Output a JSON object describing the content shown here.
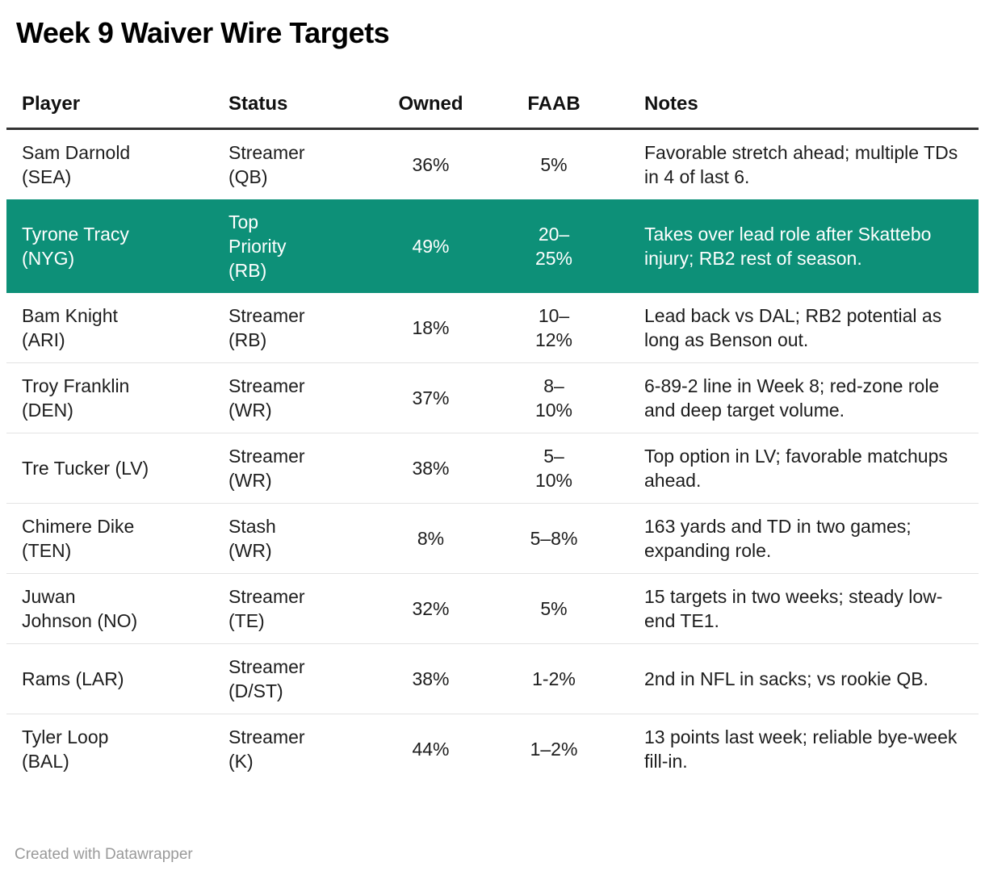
{
  "title": "Week 9 Waiver Wire Targets",
  "footer": {
    "attribution": "Created with Datawrapper"
  },
  "colors": {
    "highlight_row_bg": "#0d9078",
    "highlight_row_text": "#ffffff",
    "header_rule": "#333333",
    "row_divider": "#e3e3e3",
    "body_text": "#1d1d1d",
    "footer_text": "#9a9a9a",
    "background": "#ffffff"
  },
  "chart_data": {
    "type": "table",
    "title": "Week 9 Waiver Wire Targets",
    "columns": [
      "Player",
      "Status",
      "Owned",
      "FAAB",
      "Notes"
    ],
    "rows": [
      [
        "Sam Darnold (SEA)",
        "Streamer (QB)",
        "36%",
        "5%",
        "Favorable stretch ahead; multiple TDs in 4 of last 6."
      ],
      [
        "Tyrone Tracy (NYG)",
        "Top Priority (RB)",
        "49%",
        "20–25%",
        "Takes over lead role after Skattebo injury; RB2 rest of season."
      ],
      [
        "Bam Knight (ARI)",
        "Streamer (RB)",
        "18%",
        "10–12%",
        "Lead back vs DAL; RB2 potential as long as Benson out."
      ],
      [
        "Troy Franklin (DEN)",
        "Streamer (WR)",
        "37%",
        "8–10%",
        "6-89-2 line in Week 8; red-zone role and deep target volume."
      ],
      [
        "Tre Tucker (LV)",
        "Streamer (WR)",
        "38%",
        "5–10%",
        "Top option in LV; favorable matchups ahead."
      ],
      [
        "Chimere Dike (TEN)",
        "Stash (WR)",
        "8%",
        "5–8%",
        "163 yards and TD in two games; expanding role."
      ],
      [
        "Juwan Johnson (NO)",
        "Streamer (TE)",
        "32%",
        "5%",
        "15 targets in two weeks; steady low-end TE1."
      ],
      [
        "Rams (LAR)",
        "Streamer (D/ST)",
        "38%",
        "1-2%",
        "2nd in NFL in sacks; vs rookie QB."
      ],
      [
        "Tyler Loop (BAL)",
        "Streamer (K)",
        "44%",
        "1–2%",
        "13 points last week; reliable bye-week fill-in."
      ]
    ],
    "highlighted_row": "Tyrone Tracy (NYG)",
    "layout": {
      "highlight_style": "teal row with white text",
      "grid": "horizontal dividers only"
    }
  },
  "display": {
    "headers": {
      "player": "Player",
      "status": "Status",
      "owned": "Owned",
      "faab": "FAAB",
      "notes": "Notes"
    },
    "rows": [
      {
        "player": "Sam Darnold\n(SEA)",
        "status": "Streamer\n(QB)",
        "owned": "36%",
        "faab": "5%",
        "notes": "Favorable stretch ahead; multiple TDs in 4 of last 6."
      },
      {
        "player": "Tyrone Tracy\n(NYG)",
        "status": "Top\nPriority\n(RB)",
        "owned": "49%",
        "faab": "20–\n25%",
        "notes": "Takes over lead role after Skattebo injury; RB2 rest of season."
      },
      {
        "player": "Bam Knight\n(ARI)",
        "status": "Streamer\n(RB)",
        "owned": "18%",
        "faab": "10–\n12%",
        "notes": "Lead back vs DAL; RB2 potential as long as Benson out."
      },
      {
        "player": "Troy Franklin\n(DEN)",
        "status": "Streamer\n(WR)",
        "owned": "37%",
        "faab": "8–\n10%",
        "notes": "6-89-2 line in Week 8; red-zone role and deep target volume."
      },
      {
        "player": "Tre Tucker (LV)",
        "status": "Streamer\n(WR)",
        "owned": "38%",
        "faab": "5–\n10%",
        "notes": "Top option in LV; favorable matchups ahead."
      },
      {
        "player": "Chimere Dike\n(TEN)",
        "status": "Stash\n(WR)",
        "owned": "8%",
        "faab": "5–8%",
        "notes": "163 yards and TD in two games; expanding role."
      },
      {
        "player": "Juwan\nJohnson (NO)",
        "status": "Streamer\n(TE)",
        "owned": "32%",
        "faab": "5%",
        "notes": "15 targets in two weeks; steady low-end TE1."
      },
      {
        "player": "Rams (LAR)",
        "status": "Streamer\n(D/ST)",
        "owned": "38%",
        "faab": "1-2%",
        "notes": "2nd in NFL in sacks; vs rookie QB."
      },
      {
        "player": "Tyler Loop\n(BAL)",
        "status": "Streamer\n(K)",
        "owned": "44%",
        "faab": "1–2%",
        "notes": "13 points last week; reliable bye-week fill-in."
      }
    ]
  }
}
